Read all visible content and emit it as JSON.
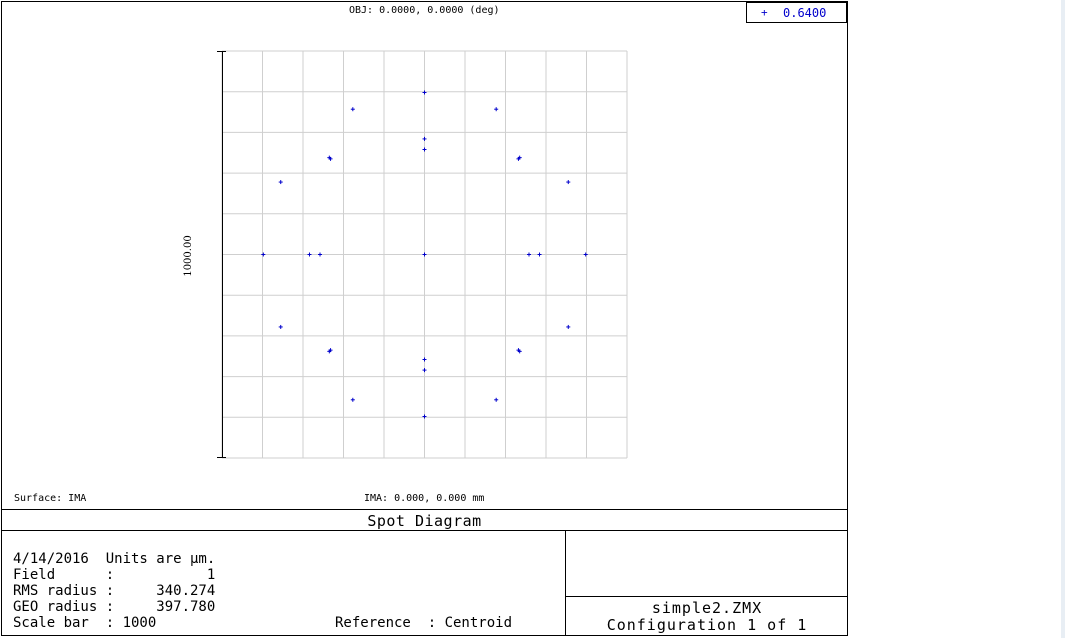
{
  "header": {
    "obj_label": "OBJ: 0.0000, 0.0000 (deg)"
  },
  "legend": {
    "marker": "+",
    "wavelength": "0.6400",
    "color": "#0000cc"
  },
  "scale_bar_label": "1000.00",
  "surface_label": "Surface: IMA",
  "ima_label": "IMA: 0.000, 0.000 mm",
  "title": "Spot Diagram",
  "info": {
    "date_units": "4/14/2016  Units are µm.",
    "field": "Field      :           1",
    "rms": "RMS radius :     340.274",
    "geo": "GEO radius :     397.780",
    "scale": "Scale bar  : 1000",
    "reference": "Reference  : Centroid"
  },
  "file": {
    "name": "simple2.ZMX",
    "configuration": "Configuration 1 of 1"
  },
  "chart_data": {
    "type": "scatter",
    "title": "",
    "xlabel": "",
    "ylabel": "1000.00",
    "xlim": [
      -500,
      500
    ],
    "ylim": [
      -500,
      500
    ],
    "grid": true,
    "grid_divisions": 10,
    "marker": "+",
    "series": [
      {
        "name": "0.6400",
        "color": "#0000cc",
        "points": [
          [
            0,
            398
          ],
          [
            0,
            284
          ],
          [
            0,
            258
          ],
          [
            177,
            357
          ],
          [
            -177,
            357
          ],
          [
            232,
            235
          ],
          [
            235,
            238
          ],
          [
            -232,
            235
          ],
          [
            -235,
            238
          ],
          [
            355,
            178
          ],
          [
            -355,
            178
          ],
          [
            398,
            0
          ],
          [
            284,
            0
          ],
          [
            258,
            0
          ],
          [
            -398,
            0
          ],
          [
            -284,
            0
          ],
          [
            -258,
            0
          ],
          [
            0,
            0
          ],
          [
            355,
            -178
          ],
          [
            -355,
            -178
          ],
          [
            232,
            -235
          ],
          [
            235,
            -238
          ],
          [
            -232,
            -235
          ],
          [
            -235,
            -238
          ],
          [
            177,
            -357
          ],
          [
            -177,
            -357
          ],
          [
            0,
            -398
          ],
          [
            0,
            -284
          ],
          [
            0,
            -258
          ]
        ]
      }
    ]
  }
}
